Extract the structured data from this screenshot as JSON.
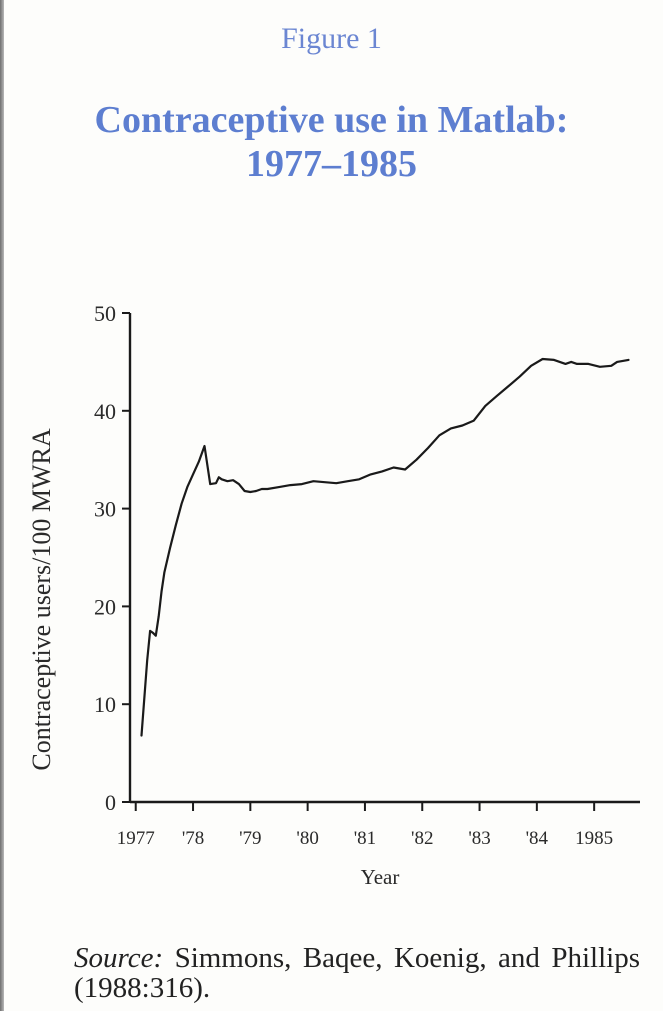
{
  "figure_label": "Figure 1",
  "chart_data": {
    "type": "line",
    "title": "Contraceptive use in Matlab:",
    "subtitle": "1977–1985",
    "xlabel": "Year",
    "ylabel": "Contraceptive users/100 MWRA",
    "xlim": [
      1977.0,
      1985.9
    ],
    "ylim": [
      0,
      50
    ],
    "x_ticks": [
      {
        "value": 1977.1,
        "label": "1977"
      },
      {
        "value": 1978.1,
        "label": "'78"
      },
      {
        "value": 1979.1,
        "label": "'79"
      },
      {
        "value": 1980.1,
        "label": "'80"
      },
      {
        "value": 1981.1,
        "label": "'81"
      },
      {
        "value": 1982.1,
        "label": "'82"
      },
      {
        "value": 1983.1,
        "label": "'83"
      },
      {
        "value": 1984.1,
        "label": "'84"
      },
      {
        "value": 1985.1,
        "label": "1985"
      }
    ],
    "y_ticks": [
      0,
      10,
      20,
      30,
      40,
      50
    ],
    "grid": false,
    "legend": "none",
    "series": [
      {
        "x": [
          1977.2,
          1977.3,
          1977.35,
          1977.4,
          1977.45,
          1977.5,
          1977.55,
          1977.6,
          1977.7,
          1977.8,
          1977.9,
          1978.0,
          1978.1,
          1978.2,
          1978.3,
          1978.4,
          1978.5,
          1978.55,
          1978.6,
          1978.7,
          1978.8,
          1978.9,
          1979.0,
          1979.1,
          1979.2,
          1979.3,
          1979.4,
          1979.6,
          1979.8,
          1980.0,
          1980.2,
          1980.4,
          1980.6,
          1980.8,
          1981.0,
          1981.2,
          1981.4,
          1981.6,
          1981.8,
          1982.0,
          1982.2,
          1982.4,
          1982.6,
          1982.8,
          1983.0,
          1983.2,
          1983.4,
          1983.6,
          1983.8,
          1984.0,
          1984.2,
          1984.4,
          1984.6,
          1984.7,
          1984.8,
          1985.0,
          1985.2,
          1985.4,
          1985.5,
          1985.6,
          1985.7
        ],
        "y": [
          6.8,
          14.5,
          17.5,
          17.3,
          17.0,
          19.0,
          21.5,
          23.5,
          26.0,
          28.3,
          30.5,
          32.2,
          33.5,
          34.8,
          36.4,
          32.5,
          32.6,
          33.2,
          33.0,
          32.8,
          32.9,
          32.5,
          31.8,
          31.7,
          31.8,
          32.0,
          32.0,
          32.2,
          32.4,
          32.5,
          32.8,
          32.7,
          32.6,
          32.8,
          33.0,
          33.5,
          33.8,
          34.2,
          34.0,
          35.0,
          36.2,
          37.5,
          38.2,
          38.5,
          39.0,
          40.5,
          41.5,
          42.5,
          43.5,
          44.6,
          45.3,
          45.2,
          44.8,
          45.0,
          44.8,
          44.8,
          44.5,
          44.6,
          45.0,
          45.1,
          45.2
        ]
      }
    ]
  },
  "source": {
    "label": "Source:",
    "text": " Simmons, Baqee, Koenig, and Phillips (1988:316)."
  }
}
